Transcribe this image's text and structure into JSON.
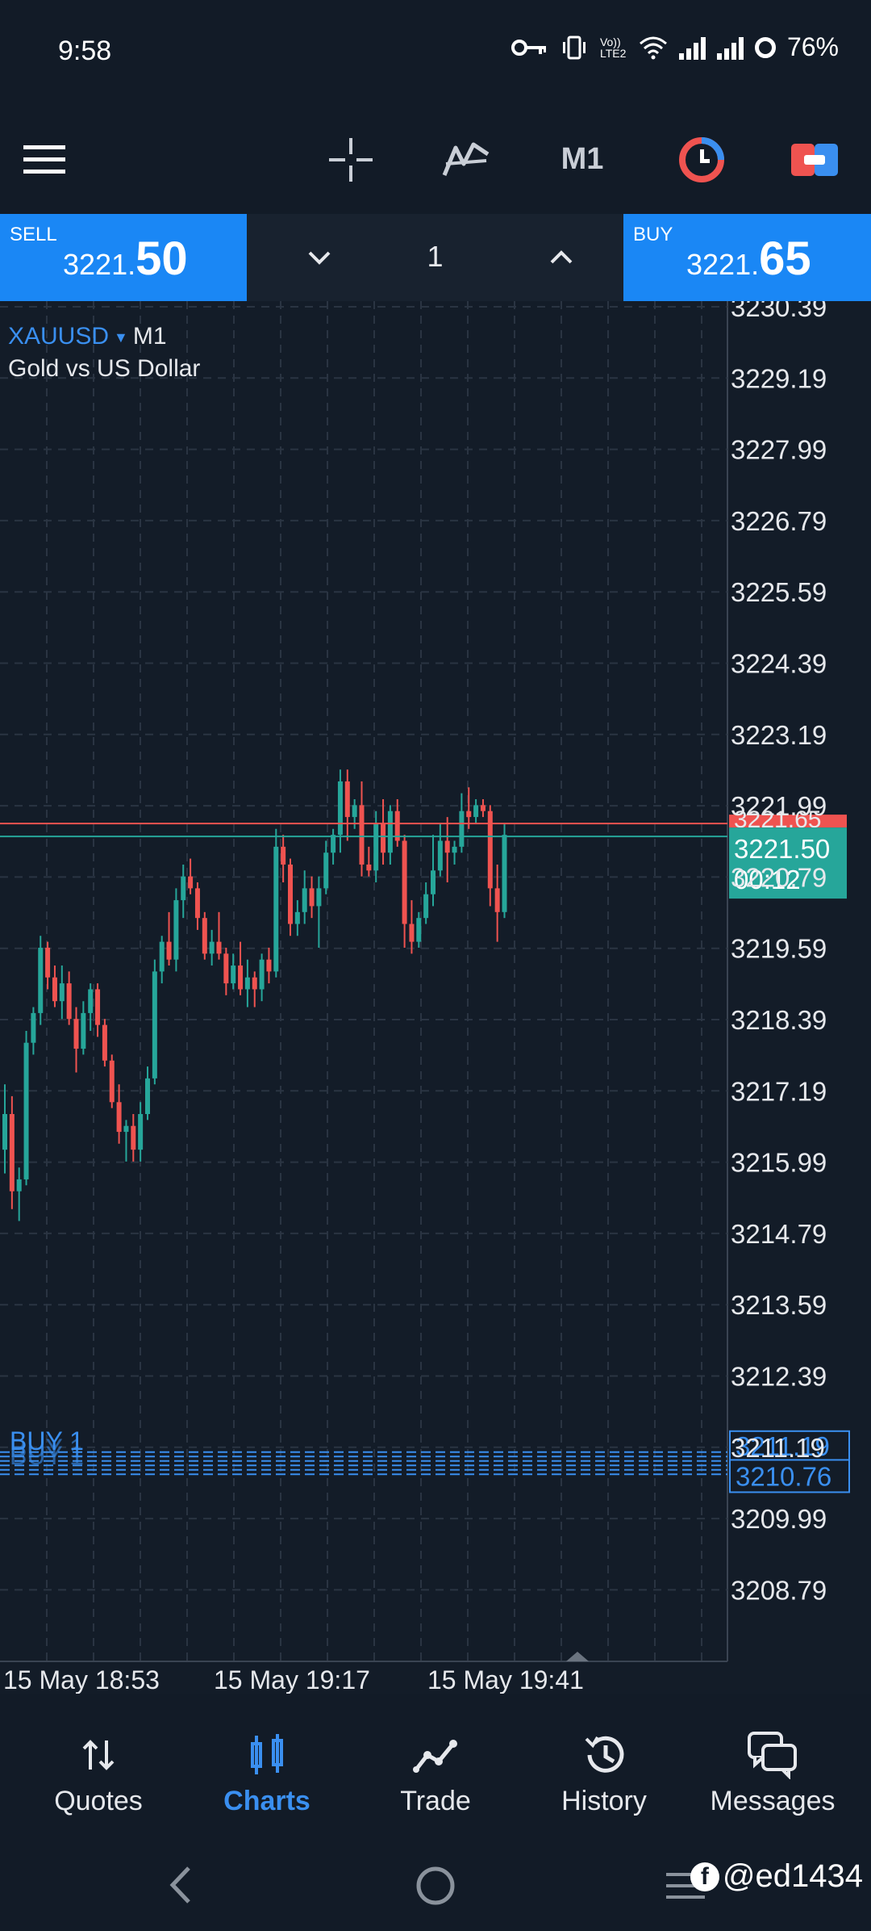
{
  "status_bar": {
    "time": "9:58",
    "volte": "Vo)) LTE2",
    "battery": "76%"
  },
  "toolbar": {
    "timeframe": "M1"
  },
  "trade": {
    "sell_label": "SELL",
    "sell_price_main": "3221.",
    "sell_price_big": "50",
    "buy_label": "BUY",
    "buy_price_main": "3221.",
    "buy_price_big": "65",
    "lot": "1"
  },
  "chart": {
    "symbol": "XAUUSD",
    "timeframe": "M1",
    "description": "Gold vs US Dollar",
    "y_ticks": [
      "3230.39",
      "3229.19",
      "3227.99",
      "3226.79",
      "3225.59",
      "3224.39",
      "3223.19",
      "3221.99",
      "3220.79",
      "3219.59",
      "3218.39",
      "3217.19",
      "3215.99",
      "3214.79",
      "3213.59",
      "3212.39",
      "3211.19",
      "3209.99",
      "3208.79"
    ],
    "x_ticks": [
      "15 May 18:53",
      "15 May 19:17",
      "15 May 19:41"
    ],
    "current_price": "3221.50",
    "countdown": "00:12",
    "ask_price_label": "3221.65",
    "order_label": "BUY 1",
    "order_price_1": "3211.19",
    "order_price_2": "3210.76",
    "colors": {
      "up": "#26a69a",
      "down": "#ef5350",
      "bid": "#26a69a",
      "ask": "#ef5350",
      "order": "#3a8ff0",
      "grid": "#2a3442"
    }
  },
  "chart_data": {
    "type": "candlestick",
    "title": "",
    "ylim": [
      3208.0,
      3230.6
    ],
    "candles": [
      [
        3216.2,
        3217.3,
        3215.8,
        3216.8
      ],
      [
        3216.8,
        3217.1,
        3215.2,
        3215.5
      ],
      [
        3215.5,
        3215.9,
        3215.0,
        3215.7
      ],
      [
        3215.7,
        3218.2,
        3215.6,
        3218.0
      ],
      [
        3218.0,
        3218.6,
        3217.8,
        3218.5
      ],
      [
        3218.5,
        3219.8,
        3218.3,
        3219.6
      ],
      [
        3219.6,
        3219.7,
        3218.9,
        3219.1
      ],
      [
        3219.1,
        3219.3,
        3218.6,
        3218.7
      ],
      [
        3218.7,
        3219.3,
        3218.4,
        3219.0
      ],
      [
        3219.0,
        3219.2,
        3218.3,
        3218.4
      ],
      [
        3218.4,
        3218.6,
        3217.5,
        3217.9
      ],
      [
        3217.9,
        3218.7,
        3217.8,
        3218.5
      ],
      [
        3218.5,
        3219.0,
        3218.2,
        3218.9
      ],
      [
        3218.9,
        3219.0,
        3218.1,
        3218.3
      ],
      [
        3218.3,
        3218.4,
        3217.6,
        3217.7
      ],
      [
        3217.7,
        3217.8,
        3216.9,
        3217.0
      ],
      [
        3217.0,
        3217.3,
        3216.3,
        3216.5
      ],
      [
        3216.5,
        3216.7,
        3216.0,
        3216.6
      ],
      [
        3216.6,
        3216.8,
        3216.0,
        3216.2
      ],
      [
        3216.2,
        3217.0,
        3216.0,
        3216.8
      ],
      [
        3216.8,
        3217.6,
        3216.7,
        3217.4
      ],
      [
        3217.4,
        3219.4,
        3217.3,
        3219.2
      ],
      [
        3219.2,
        3219.8,
        3219.0,
        3219.7
      ],
      [
        3219.7,
        3220.2,
        3219.3,
        3219.4
      ],
      [
        3219.4,
        3220.6,
        3219.2,
        3220.4
      ],
      [
        3220.4,
        3221.0,
        3220.1,
        3220.8
      ],
      [
        3220.8,
        3221.1,
        3220.5,
        3220.6
      ],
      [
        3220.6,
        3220.7,
        3219.9,
        3220.1
      ],
      [
        3220.1,
        3220.2,
        3219.4,
        3219.5
      ],
      [
        3219.5,
        3219.9,
        3219.3,
        3219.7
      ],
      [
        3219.7,
        3220.2,
        3219.4,
        3219.5
      ],
      [
        3219.5,
        3219.6,
        3218.8,
        3219.0
      ],
      [
        3219.0,
        3219.5,
        3218.9,
        3219.3
      ],
      [
        3219.3,
        3219.7,
        3218.8,
        3218.9
      ],
      [
        3218.9,
        3219.4,
        3218.6,
        3219.1
      ],
      [
        3219.1,
        3219.2,
        3218.6,
        3218.9
      ],
      [
        3218.9,
        3219.5,
        3218.7,
        3219.4
      ],
      [
        3219.4,
        3219.6,
        3219.0,
        3219.2
      ],
      [
        3219.2,
        3221.6,
        3219.1,
        3221.3
      ],
      [
        3221.3,
        3221.5,
        3220.7,
        3221.0
      ],
      [
        3221.0,
        3221.1,
        3219.8,
        3220.0
      ],
      [
        3220.0,
        3220.4,
        3219.8,
        3220.2
      ],
      [
        3220.2,
        3220.9,
        3220.0,
        3220.6
      ],
      [
        3220.6,
        3220.8,
        3220.1,
        3220.3
      ],
      [
        3220.3,
        3220.8,
        3219.6,
        3220.6
      ],
      [
        3220.6,
        3221.4,
        3220.5,
        3221.2
      ],
      [
        3221.2,
        3221.6,
        3221.0,
        3221.5
      ],
      [
        3221.5,
        3222.6,
        3221.2,
        3222.4
      ],
      [
        3222.4,
        3222.6,
        3221.4,
        3221.8
      ],
      [
        3221.8,
        3222.1,
        3221.6,
        3222.0
      ],
      [
        3222.0,
        3222.4,
        3220.8,
        3221.0
      ],
      [
        3221.0,
        3221.3,
        3220.8,
        3220.9
      ],
      [
        3220.9,
        3221.9,
        3220.7,
        3221.7
      ],
      [
        3221.7,
        3222.1,
        3221.0,
        3221.2
      ],
      [
        3221.2,
        3222.0,
        3221.0,
        3221.9
      ],
      [
        3221.9,
        3222.1,
        3221.3,
        3221.4
      ],
      [
        3221.4,
        3221.5,
        3219.6,
        3220.0
      ],
      [
        3220.0,
        3220.4,
        3219.5,
        3219.7
      ],
      [
        3219.7,
        3220.2,
        3219.6,
        3220.1
      ],
      [
        3220.1,
        3220.7,
        3220.0,
        3220.5
      ],
      [
        3220.5,
        3221.5,
        3220.3,
        3220.9
      ],
      [
        3220.9,
        3221.7,
        3220.8,
        3221.4
      ],
      [
        3221.4,
        3221.8,
        3220.7,
        3221.2
      ],
      [
        3221.2,
        3221.4,
        3221.0,
        3221.3
      ],
      [
        3221.3,
        3222.2,
        3221.2,
        3221.9
      ],
      [
        3221.9,
        3222.3,
        3221.6,
        3221.8
      ],
      [
        3221.8,
        3222.1,
        3221.7,
        3222.0
      ],
      [
        3222.0,
        3222.1,
        3221.8,
        3221.9
      ],
      [
        3221.9,
        3222.0,
        3220.3,
        3220.6
      ],
      [
        3220.6,
        3221.0,
        3219.7,
        3220.2
      ],
      [
        3220.2,
        3221.7,
        3220.1,
        3221.5
      ]
    ]
  },
  "nav": {
    "quotes": "Quotes",
    "charts": "Charts",
    "trade": "Trade",
    "history": "History",
    "messages": "Messages"
  },
  "watermark": "@ed1434"
}
